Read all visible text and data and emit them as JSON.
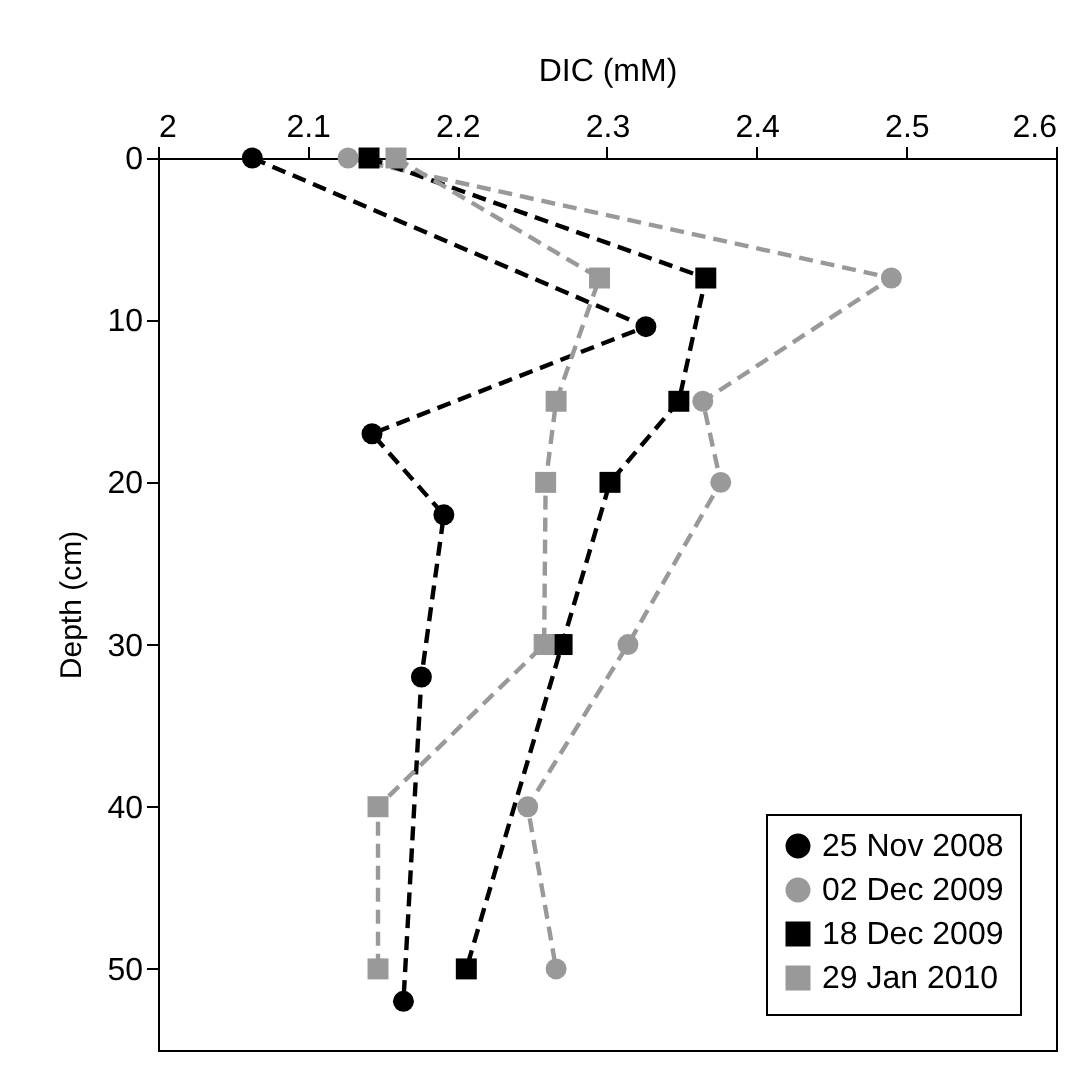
{
  "chart_data": {
    "type": "line",
    "xlabel": "DIC (mM)",
    "ylabel": "Depth (cm)",
    "xlim": [
      2,
      2.6
    ],
    "xticks": [
      2,
      2.1,
      2.2,
      2.3,
      2.4,
      2.5,
      2.6
    ],
    "ylim": [
      55,
      0
    ],
    "yticks": [
      0,
      10,
      20,
      30,
      40,
      50
    ],
    "grid": false,
    "legend": "bottom right",
    "line_style": "dashed",
    "series": [
      {
        "name": "25 Nov 2008",
        "color": "#000000",
        "marker": "circle",
        "x": [
          2.063,
          2.326,
          2.143,
          2.191,
          2.176,
          2.164
        ],
        "values": [
          0,
          10.4,
          17,
          22,
          32,
          52
        ]
      },
      {
        "name": "02 Dec 2009",
        "color": "#999999",
        "marker": "circle",
        "x": [
          2.127,
          2.49,
          2.364,
          2.376,
          2.314,
          2.247,
          2.266
        ],
        "values": [
          0,
          7.4,
          15,
          20,
          30,
          40,
          50
        ]
      },
      {
        "name": "18 Dec 2009",
        "color": "#000000",
        "marker": "square",
        "x": [
          2.141,
          2.366,
          2.348,
          2.302,
          2.27,
          2.206
        ],
        "values": [
          0,
          7.4,
          15,
          20,
          30,
          50
        ]
      },
      {
        "name": "29 Jan 2010",
        "color": "#999999",
        "marker": "square",
        "x": [
          2.159,
          2.295,
          2.266,
          2.259,
          2.258,
          2.147,
          2.147
        ],
        "values": [
          0,
          7.4,
          15,
          20,
          30,
          40,
          50
        ]
      }
    ]
  }
}
